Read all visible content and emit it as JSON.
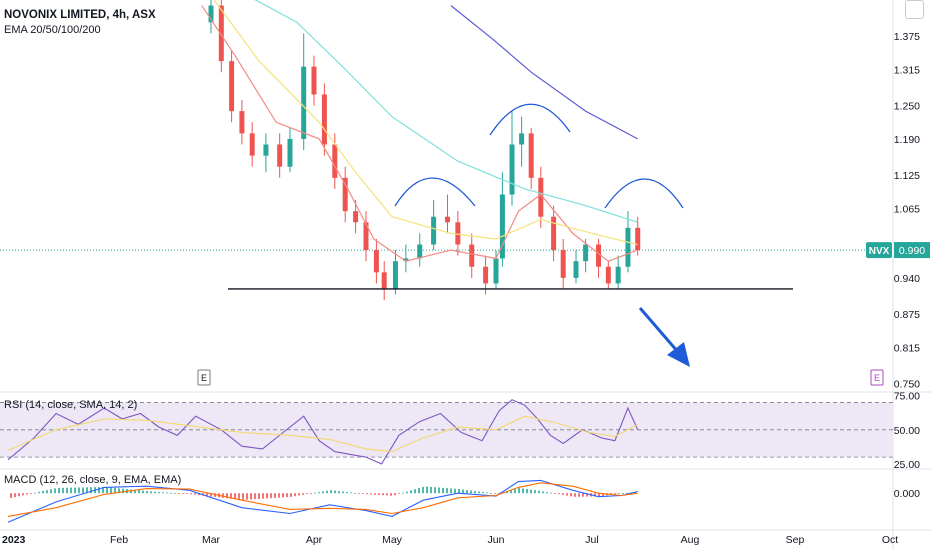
{
  "header": {
    "title": "NOVONIX LIMITED, 4h, ASX",
    "ema_label": "EMA 20/50/100/200",
    "rsi_label": "RSI (14, close, SMA, 14, 2)",
    "macd_label": "MACD (12, 26, close, 9, EMA, EMA)"
  },
  "price_badge": {
    "symbol": "NVX",
    "price": "0.990"
  },
  "event_markers": [
    "E",
    "E"
  ],
  "colors": {
    "up": "#26a69a",
    "down": "#ef5350",
    "ema20": "#f28b82",
    "ema50": "#f5e27a",
    "ema100": "#7fe0dc",
    "ema200": "#5b5bd6",
    "annotation": "#1e5bd8",
    "rsi": "#7e57c2",
    "rsi_band": "#ede7f6",
    "macd": "#2962ff",
    "signal": "#ff6d00"
  },
  "chart_data": [
    {
      "type": "candlestick",
      "title": "NOVONIX LIMITED, 4h, ASX",
      "x_tick_labels": [
        "2023",
        "Feb",
        "Mar",
        "Apr",
        "May",
        "Jun",
        "Jul",
        "Aug",
        "Sep",
        "Oct"
      ],
      "y_tick_labels": [
        "1.375",
        "1.315",
        "1.250",
        "1.190",
        "1.125",
        "1.065",
        "0.940",
        "0.875",
        "0.815",
        "0.750"
      ],
      "ylim": [
        0.74,
        1.44
      ],
      "last_price": 0.99,
      "support_level": 0.92,
      "series": [
        {
          "name": "EMA 20",
          "points": [
            [
              "Feb 28",
              1.43
            ],
            [
              "Mar 08",
              1.34
            ],
            [
              "Mar 20",
              1.22
            ],
            [
              "Apr 03",
              1.19
            ],
            [
              "Apr 14",
              1.1
            ],
            [
              "Apr 24",
              1.01
            ],
            [
              "May 05",
              0.97
            ],
            [
              "May 18",
              0.99
            ],
            [
              "Jun 01",
              0.975
            ],
            [
              "Jun 08",
              1.06
            ],
            [
              "Jun 15",
              1.09
            ],
            [
              "Jun 25",
              1.02
            ],
            [
              "Jul 06",
              0.97
            ],
            [
              "Jul 15",
              0.99
            ]
          ]
        },
        {
          "name": "EMA 50",
          "points": [
            [
              "Feb 28",
              1.47
            ],
            [
              "Mar 15",
              1.33
            ],
            [
              "Apr 03",
              1.22
            ],
            [
              "Apr 17",
              1.13
            ],
            [
              "May 01",
              1.05
            ],
            [
              "May 18",
              1.02
            ],
            [
              "Jun 01",
              1.01
            ],
            [
              "Jun 15",
              1.045
            ],
            [
              "Jul 01",
              1.02
            ],
            [
              "Jul 15",
              1.0
            ]
          ]
        },
        {
          "name": "EMA 100",
          "points": [
            [
              "Mar 08",
              1.46
            ],
            [
              "Mar 26",
              1.4
            ],
            [
              "Apr 12",
              1.32
            ],
            [
              "May 01",
              1.23
            ],
            [
              "May 20",
              1.15
            ],
            [
              "Jun 10",
              1.1
            ],
            [
              "Jun 29",
              1.07
            ],
            [
              "Jul 15",
              1.04
            ]
          ]
        },
        {
          "name": "EMA 200",
          "points": [
            [
              "May 18",
              1.43
            ],
            [
              "May 30",
              1.37
            ],
            [
              "Jun 12",
              1.31
            ],
            [
              "Jun 29",
              1.24
            ],
            [
              "Jul 15",
              1.19
            ]
          ]
        }
      ],
      "candles": [
        [
          "Mar 01",
          1.4,
          1.43,
          1.38,
          1.44
        ],
        [
          "Mar 04",
          1.43,
          1.33,
          1.31,
          1.44
        ],
        [
          "Mar 07",
          1.33,
          1.24,
          1.22,
          1.35
        ],
        [
          "Mar 10",
          1.24,
          1.2,
          1.18,
          1.26
        ],
        [
          "Mar 13",
          1.2,
          1.16,
          1.14,
          1.22
        ],
        [
          "Mar 17",
          1.16,
          1.18,
          1.13,
          1.2
        ],
        [
          "Mar 21",
          1.18,
          1.14,
          1.12,
          1.2
        ],
        [
          "Mar 24",
          1.14,
          1.19,
          1.13,
          1.21
        ],
        [
          "Mar 28",
          1.19,
          1.32,
          1.17,
          1.38
        ],
        [
          "Apr 01",
          1.32,
          1.27,
          1.25,
          1.34
        ],
        [
          "Apr 05",
          1.27,
          1.18,
          1.16,
          1.29
        ],
        [
          "Apr 09",
          1.18,
          1.12,
          1.1,
          1.2
        ],
        [
          "Apr 13",
          1.12,
          1.06,
          1.04,
          1.14
        ],
        [
          "Apr 17",
          1.06,
          1.04,
          1.02,
          1.08
        ],
        [
          "Apr 21",
          1.04,
          0.99,
          0.97,
          1.06
        ],
        [
          "Apr 25",
          0.99,
          0.95,
          0.93,
          1.01
        ],
        [
          "Apr 28",
          0.95,
          0.92,
          0.9,
          0.97
        ],
        [
          "May 02",
          0.92,
          0.97,
          0.91,
          0.99
        ],
        [
          "May 05",
          0.97,
          0.975,
          0.95,
          1.0
        ],
        [
          "May 09",
          0.975,
          1.0,
          0.96,
          1.02
        ],
        [
          "May 13",
          1.0,
          1.05,
          0.99,
          1.08
        ],
        [
          "May 17",
          1.05,
          1.04,
          1.02,
          1.09
        ],
        [
          "May 20",
          1.04,
          1.0,
          0.98,
          1.06
        ],
        [
          "May 24",
          1.0,
          0.96,
          0.94,
          1.02
        ],
        [
          "May 28",
          0.96,
          0.93,
          0.91,
          0.98
        ],
        [
          "May 31",
          0.93,
          0.975,
          0.92,
          0.99
        ],
        [
          "Jun 03",
          0.975,
          1.09,
          0.96,
          1.13
        ],
        [
          "Jun 06",
          1.09,
          1.18,
          1.07,
          1.24
        ],
        [
          "Jun 09",
          1.18,
          1.2,
          1.14,
          1.23
        ],
        [
          "Jun 12",
          1.2,
          1.12,
          1.1,
          1.21
        ],
        [
          "Jun 15",
          1.12,
          1.05,
          1.03,
          1.14
        ],
        [
          "Jun 19",
          1.05,
          0.99,
          0.97,
          1.07
        ],
        [
          "Jun 22",
          0.99,
          0.94,
          0.92,
          1.01
        ],
        [
          "Jun 26",
          0.94,
          0.97,
          0.93,
          0.99
        ],
        [
          "Jun 29",
          0.97,
          1.0,
          0.95,
          1.01
        ],
        [
          "Jul 03",
          1.0,
          0.96,
          0.94,
          1.01
        ],
        [
          "Jul 06",
          0.96,
          0.93,
          0.92,
          0.97
        ],
        [
          "Jul 09",
          0.93,
          0.96,
          0.92,
          0.98
        ],
        [
          "Jul 12",
          0.96,
          1.03,
          0.95,
          1.06
        ],
        [
          "Jul 15",
          1.03,
          0.99,
          0.98,
          1.05
        ]
      ]
    },
    {
      "type": "line",
      "title": "RSI (14, close, SMA, 14, 2)",
      "y_tick_labels": [
        "75.00",
        "50.00",
        "25.00"
      ],
      "ylim": [
        22,
        77
      ],
      "bands": [
        70,
        50,
        30
      ],
      "series": [
        {
          "name": "RSI",
          "points": [
            [
              "Jan 01",
              28
            ],
            [
              "Jan 08",
              44
            ],
            [
              "Jan 14",
              62
            ],
            [
              "Jan 20",
              54
            ],
            [
              "Jan 27",
              66
            ],
            [
              "Feb 02",
              58
            ],
            [
              "Feb 08",
              62
            ],
            [
              "Feb 14",
              52
            ],
            [
              "Feb 20",
              46
            ],
            [
              "Feb 26",
              60
            ],
            [
              "Mar 04",
              50
            ],
            [
              "Mar 10",
              38
            ],
            [
              "Mar 16",
              36
            ],
            [
              "Mar 22",
              48
            ],
            [
              "Mar 28",
              60
            ],
            [
              "Apr 03",
              42
            ],
            [
              "Apr 09",
              34
            ],
            [
              "Apr 15",
              32
            ],
            [
              "Apr 21",
              30
            ],
            [
              "Apr 27",
              25
            ],
            [
              "May 03",
              46
            ],
            [
              "May 09",
              56
            ],
            [
              "May 15",
              62
            ],
            [
              "May 21",
              48
            ],
            [
              "May 27",
              42
            ],
            [
              "Jun 02",
              64
            ],
            [
              "Jun 06",
              72
            ],
            [
              "Jun 10",
              68
            ],
            [
              "Jun 14",
              58
            ],
            [
              "Jun 18",
              46
            ],
            [
              "Jun 22",
              40
            ],
            [
              "Jun 28",
              50
            ],
            [
              "Jul 04",
              44
            ],
            [
              "Jul 08",
              42
            ],
            [
              "Jul 12",
              66
            ],
            [
              "Jul 15",
              50
            ]
          ]
        },
        {
          "name": "RSI-based MA",
          "points": [
            [
              "Jan 01",
              35
            ],
            [
              "Jan 14",
              50
            ],
            [
              "Jan 27",
              58
            ],
            [
              "Feb 10",
              57
            ],
            [
              "Feb 24",
              53
            ],
            [
              "Mar 10",
              48
            ],
            [
              "Mar 24",
              46
            ],
            [
              "Apr 07",
              43
            ],
            [
              "Apr 21",
              36
            ],
            [
              "May 01",
              34
            ],
            [
              "May 10",
              44
            ],
            [
              "May 20",
              52
            ],
            [
              "Jun 01",
              50
            ],
            [
              "Jun 10",
              60
            ],
            [
              "Jun 20",
              55
            ],
            [
              "Jun 30",
              48
            ],
            [
              "Jul 08",
              45
            ],
            [
              "Jul 15",
              54
            ]
          ]
        }
      ]
    },
    {
      "type": "line",
      "title": "MACD (12, 26, close, 9, EMA, EMA)",
      "y_tick_labels": [
        "0.000"
      ],
      "ylim": [
        -0.06,
        0.04
      ],
      "series": [
        {
          "name": "MACD",
          "points": [
            [
              "Jan 01",
              -0.05
            ],
            [
              "Jan 14",
              -0.015
            ],
            [
              "Jan 27",
              0.01
            ],
            [
              "Feb 10",
              0.012
            ],
            [
              "Feb 24",
              0.005
            ],
            [
              "Mar 10",
              -0.025
            ],
            [
              "Mar 24",
              -0.035
            ],
            [
              "Apr 07",
              -0.02
            ],
            [
              "Apr 21",
              -0.03
            ],
            [
              "May 01",
              -0.04
            ],
            [
              "May 10",
              -0.012
            ],
            [
              "May 20",
              0.0
            ],
            [
              "Jun 01",
              -0.005
            ],
            [
              "Jun 08",
              0.02
            ],
            [
              "Jun 15",
              0.022
            ],
            [
              "Jun 25",
              0.005
            ],
            [
              "Jul 03",
              -0.006
            ],
            [
              "Jul 10",
              -0.004
            ],
            [
              "Jul 15",
              0.003
            ]
          ]
        },
        {
          "name": "Signal",
          "points": [
            [
              "Jan 01",
              -0.04
            ],
            [
              "Jan 14",
              -0.025
            ],
            [
              "Jan 27",
              -0.002
            ],
            [
              "Feb 10",
              0.008
            ],
            [
              "Feb 24",
              0.007
            ],
            [
              "Mar 10",
              -0.012
            ],
            [
              "Mar 24",
              -0.028
            ],
            [
              "Apr 07",
              -0.026
            ],
            [
              "Apr 21",
              -0.028
            ],
            [
              "May 01",
              -0.035
            ],
            [
              "May 10",
              -0.025
            ],
            [
              "May 20",
              -0.008
            ],
            [
              "Jun 01",
              -0.004
            ],
            [
              "Jun 08",
              0.01
            ],
            [
              "Jun 15",
              0.018
            ],
            [
              "Jun 25",
              0.012
            ],
            [
              "Jul 03",
              0.0
            ],
            [
              "Jul 10",
              -0.004
            ],
            [
              "Jul 15",
              0.0
            ]
          ]
        }
      ]
    }
  ]
}
